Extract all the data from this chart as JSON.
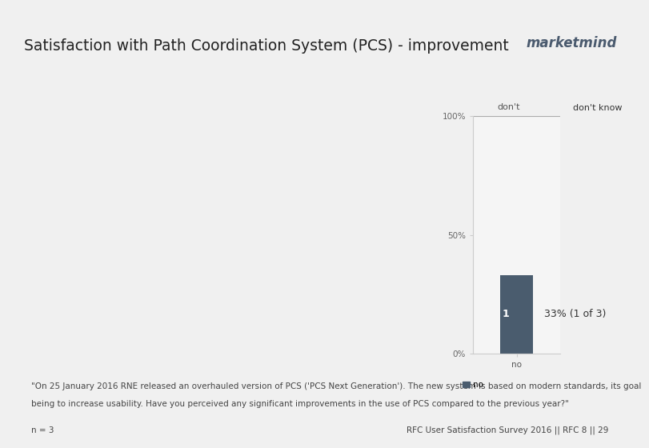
{
  "title": "Satisfaction with Path Coordination System (PCS) - improvement",
  "brand": "marketmind",
  "bar_value": 0.33,
  "bar_count_text": "33% (1 of 3)",
  "bar_inside_label": "1",
  "bar_color": "#4a5c6e",
  "header_bg": "#ffffff",
  "chart_bg": "#f0f0f0",
  "border_color": "#8aaa28",
  "y_tick_labels": [
    "0%",
    "50%",
    "100%"
  ],
  "y_tick_values": [
    0.0,
    0.5,
    1.0
  ],
  "category_label": "no",
  "dont_label_above_axis": "don't",
  "dont_know_label_right": "don't know",
  "footnote_line1": "\"On 25 January 2016 RNE released an overhauled version of PCS ('PCS Next Generation'). The new system is based on modern standards, its goal",
  "footnote_line2": "being to increase usability. Have you perceived any significant improvements in the use of PCS compared to the previous year?\"",
  "n_label": "n = 3",
  "source_label": "RFC User Satisfaction Survey 2016 || RFC 8 || 29",
  "title_fontsize": 13.5,
  "brand_fontsize": 12,
  "footnote_fontsize": 7.5,
  "annotation_fontsize": 9,
  "tick_fontsize": 7.5,
  "label_fontsize": 8
}
